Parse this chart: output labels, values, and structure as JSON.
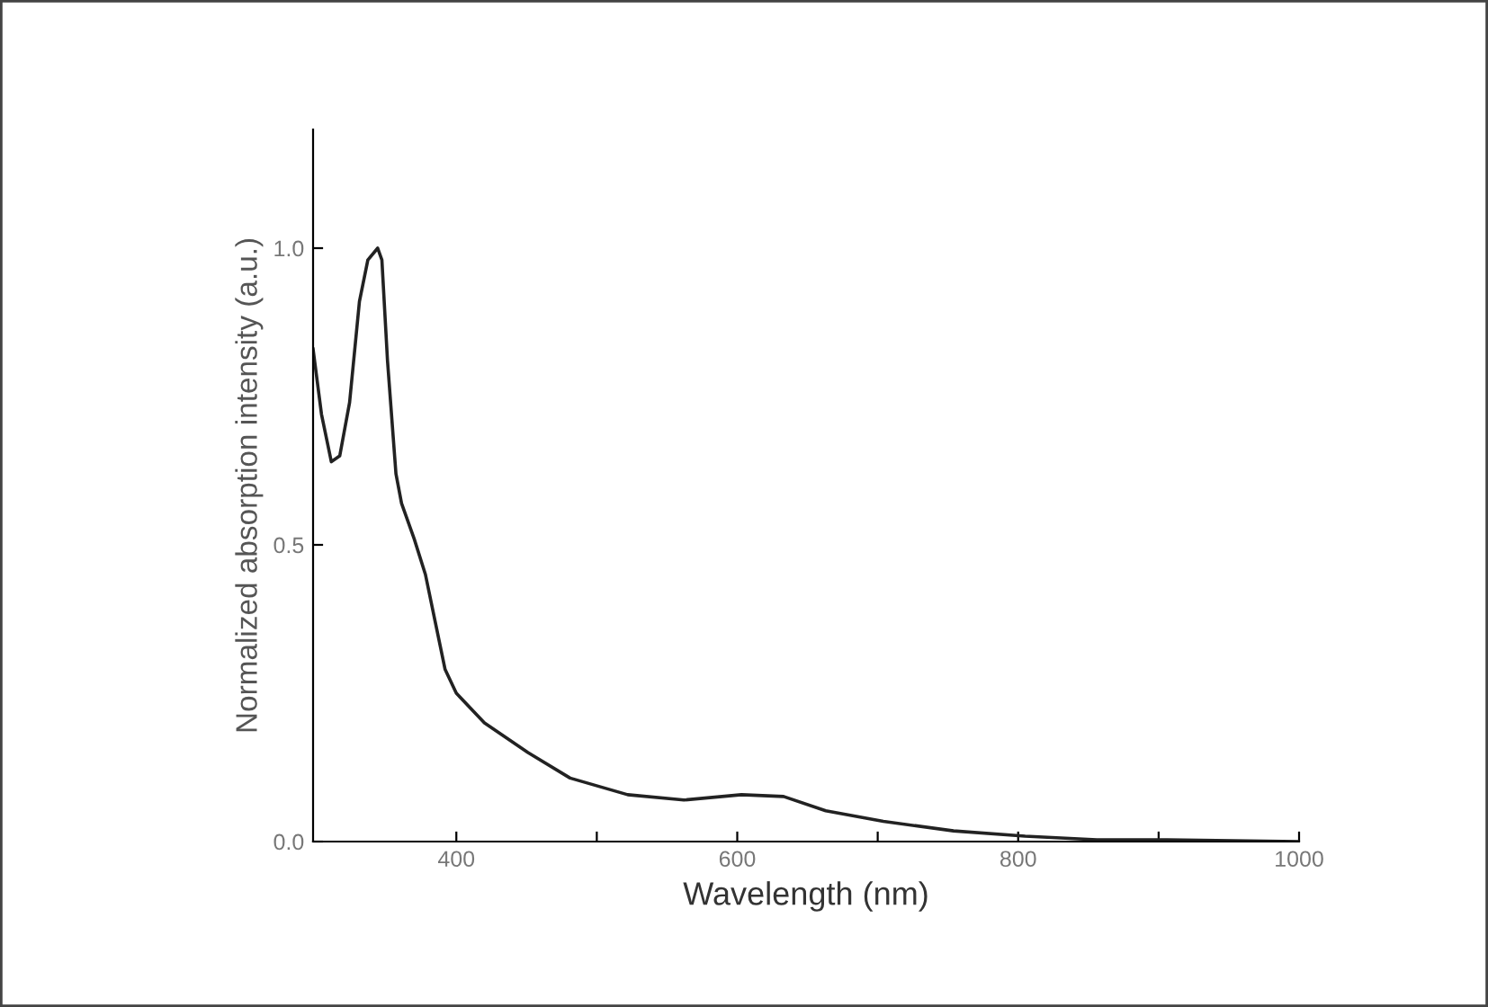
{
  "chart_data": {
    "type": "line",
    "xlabel": "Wavelength (nm)",
    "ylabel": "Normalized absorption intensity (a.u.)",
    "x": [
      298,
      304,
      311,
      317,
      324,
      331,
      337,
      344,
      347,
      351,
      357,
      361,
      370,
      378,
      385,
      392,
      400,
      420,
      451,
      481,
      522,
      562,
      603,
      633,
      663,
      704,
      754,
      805,
      856,
      906,
      1000
    ],
    "series": [
      {
        "color": "#222222",
        "values": [
          0.83,
          0.72,
          0.64,
          0.65,
          0.74,
          0.91,
          0.98,
          1.0,
          0.98,
          0.81,
          0.62,
          0.57,
          0.51,
          0.45,
          0.37,
          0.29,
          0.25,
          0.2,
          0.15,
          0.107,
          0.079,
          0.07,
          0.079,
          0.076,
          0.052,
          0.034,
          0.018,
          0.009,
          0.003,
          0.003,
          0.0
        ]
      }
    ],
    "xlim": [
      298,
      1000
    ],
    "ylim": [
      0,
      1.2
    ],
    "xticks": [
      400,
      {
        "value": 500,
        "label": null
      },
      600,
      {
        "value": 700,
        "label": null
      },
      800,
      {
        "value": 900,
        "label": null
      },
      1000
    ],
    "yticks": [
      {
        "value": 0,
        "label": "0.0"
      },
      {
        "value": 0.5,
        "label": "0.5"
      },
      {
        "value": 1.0,
        "label": "1.0"
      }
    ],
    "grid": false,
    "legend": false,
    "marker": "none",
    "line_style": "solid"
  }
}
